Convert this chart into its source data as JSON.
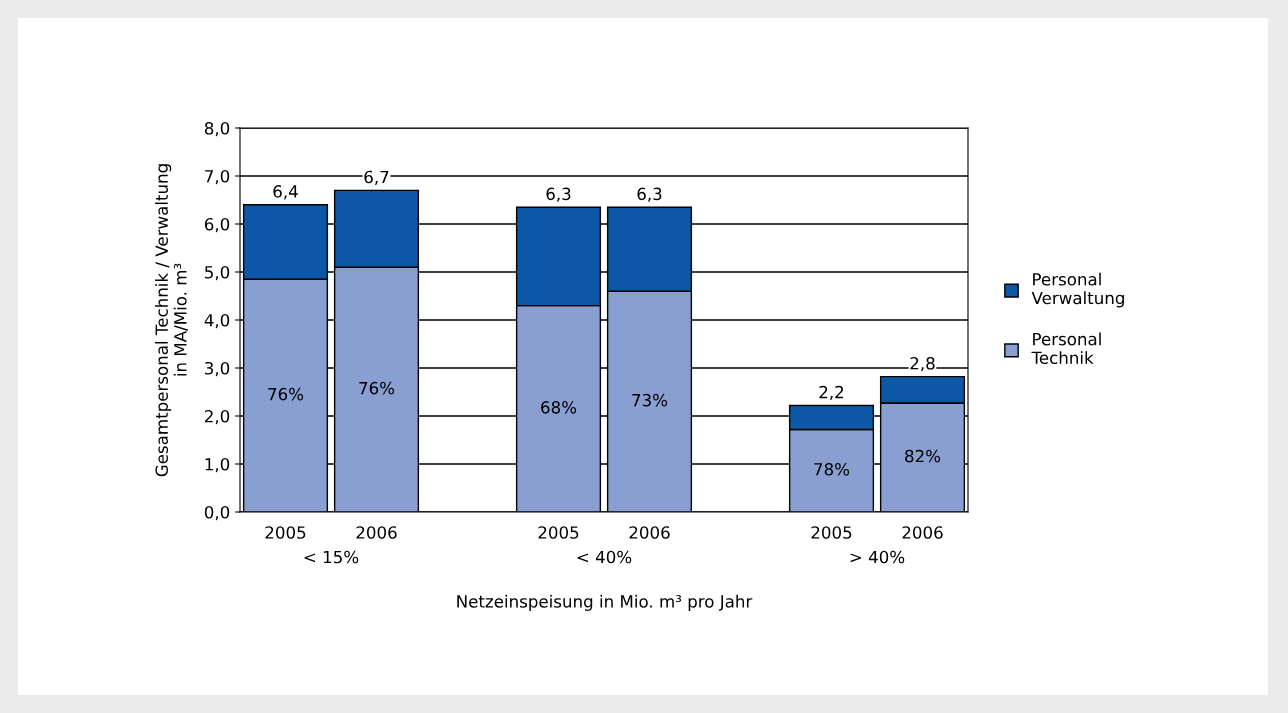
{
  "chart_data": {
    "type": "bar",
    "stacked": true,
    "ylabel": "Gesamtpersonal Technik / Verwaltung\nin MA/Mio. m³",
    "xlabel": "Netzeinspeisung in Mio. m³ pro Jahr",
    "categories": [
      "2005",
      "2006",
      null,
      "2005",
      "2006",
      null,
      "2005",
      "2006"
    ],
    "series": [
      {
        "name": "Personal\nTechnik",
        "color": "#8a9fd1",
        "values": [
          4.85,
          5.1,
          null,
          4.3,
          4.6,
          null,
          1.72,
          2.27
        ]
      },
      {
        "name": "Personal\nVerwaltung",
        "color": "#0d58a6",
        "values": [
          1.55,
          1.6,
          null,
          2.05,
          1.75,
          null,
          0.5,
          0.55
        ]
      }
    ],
    "totals": [
      "6,4",
      "6,7",
      null,
      "6,3",
      "6,3",
      null,
      "2,2",
      "2,8"
    ],
    "annotations": [
      "< 15%",
      "< 40%",
      "> 40%",
      "76%",
      "76%",
      "68%",
      "73%",
      "78%",
      "82%"
    ],
    "ylim": [
      0,
      8
    ],
    "yticks": [
      {
        "value": 0,
        "label": "0,0"
      },
      {
        "value": 1,
        "label": "1,0"
      },
      {
        "value": 2,
        "label": "2,0"
      },
      {
        "value": 3,
        "label": "3,0"
      },
      {
        "value": 4,
        "label": "4,0"
      },
      {
        "value": 5,
        "label": "5,0"
      },
      {
        "value": 6,
        "label": "6,0"
      },
      {
        "value": 7,
        "label": "7,0"
      },
      {
        "value": 8,
        "label": "8,0"
      }
    ],
    "grid": "y",
    "legend": "right"
  }
}
